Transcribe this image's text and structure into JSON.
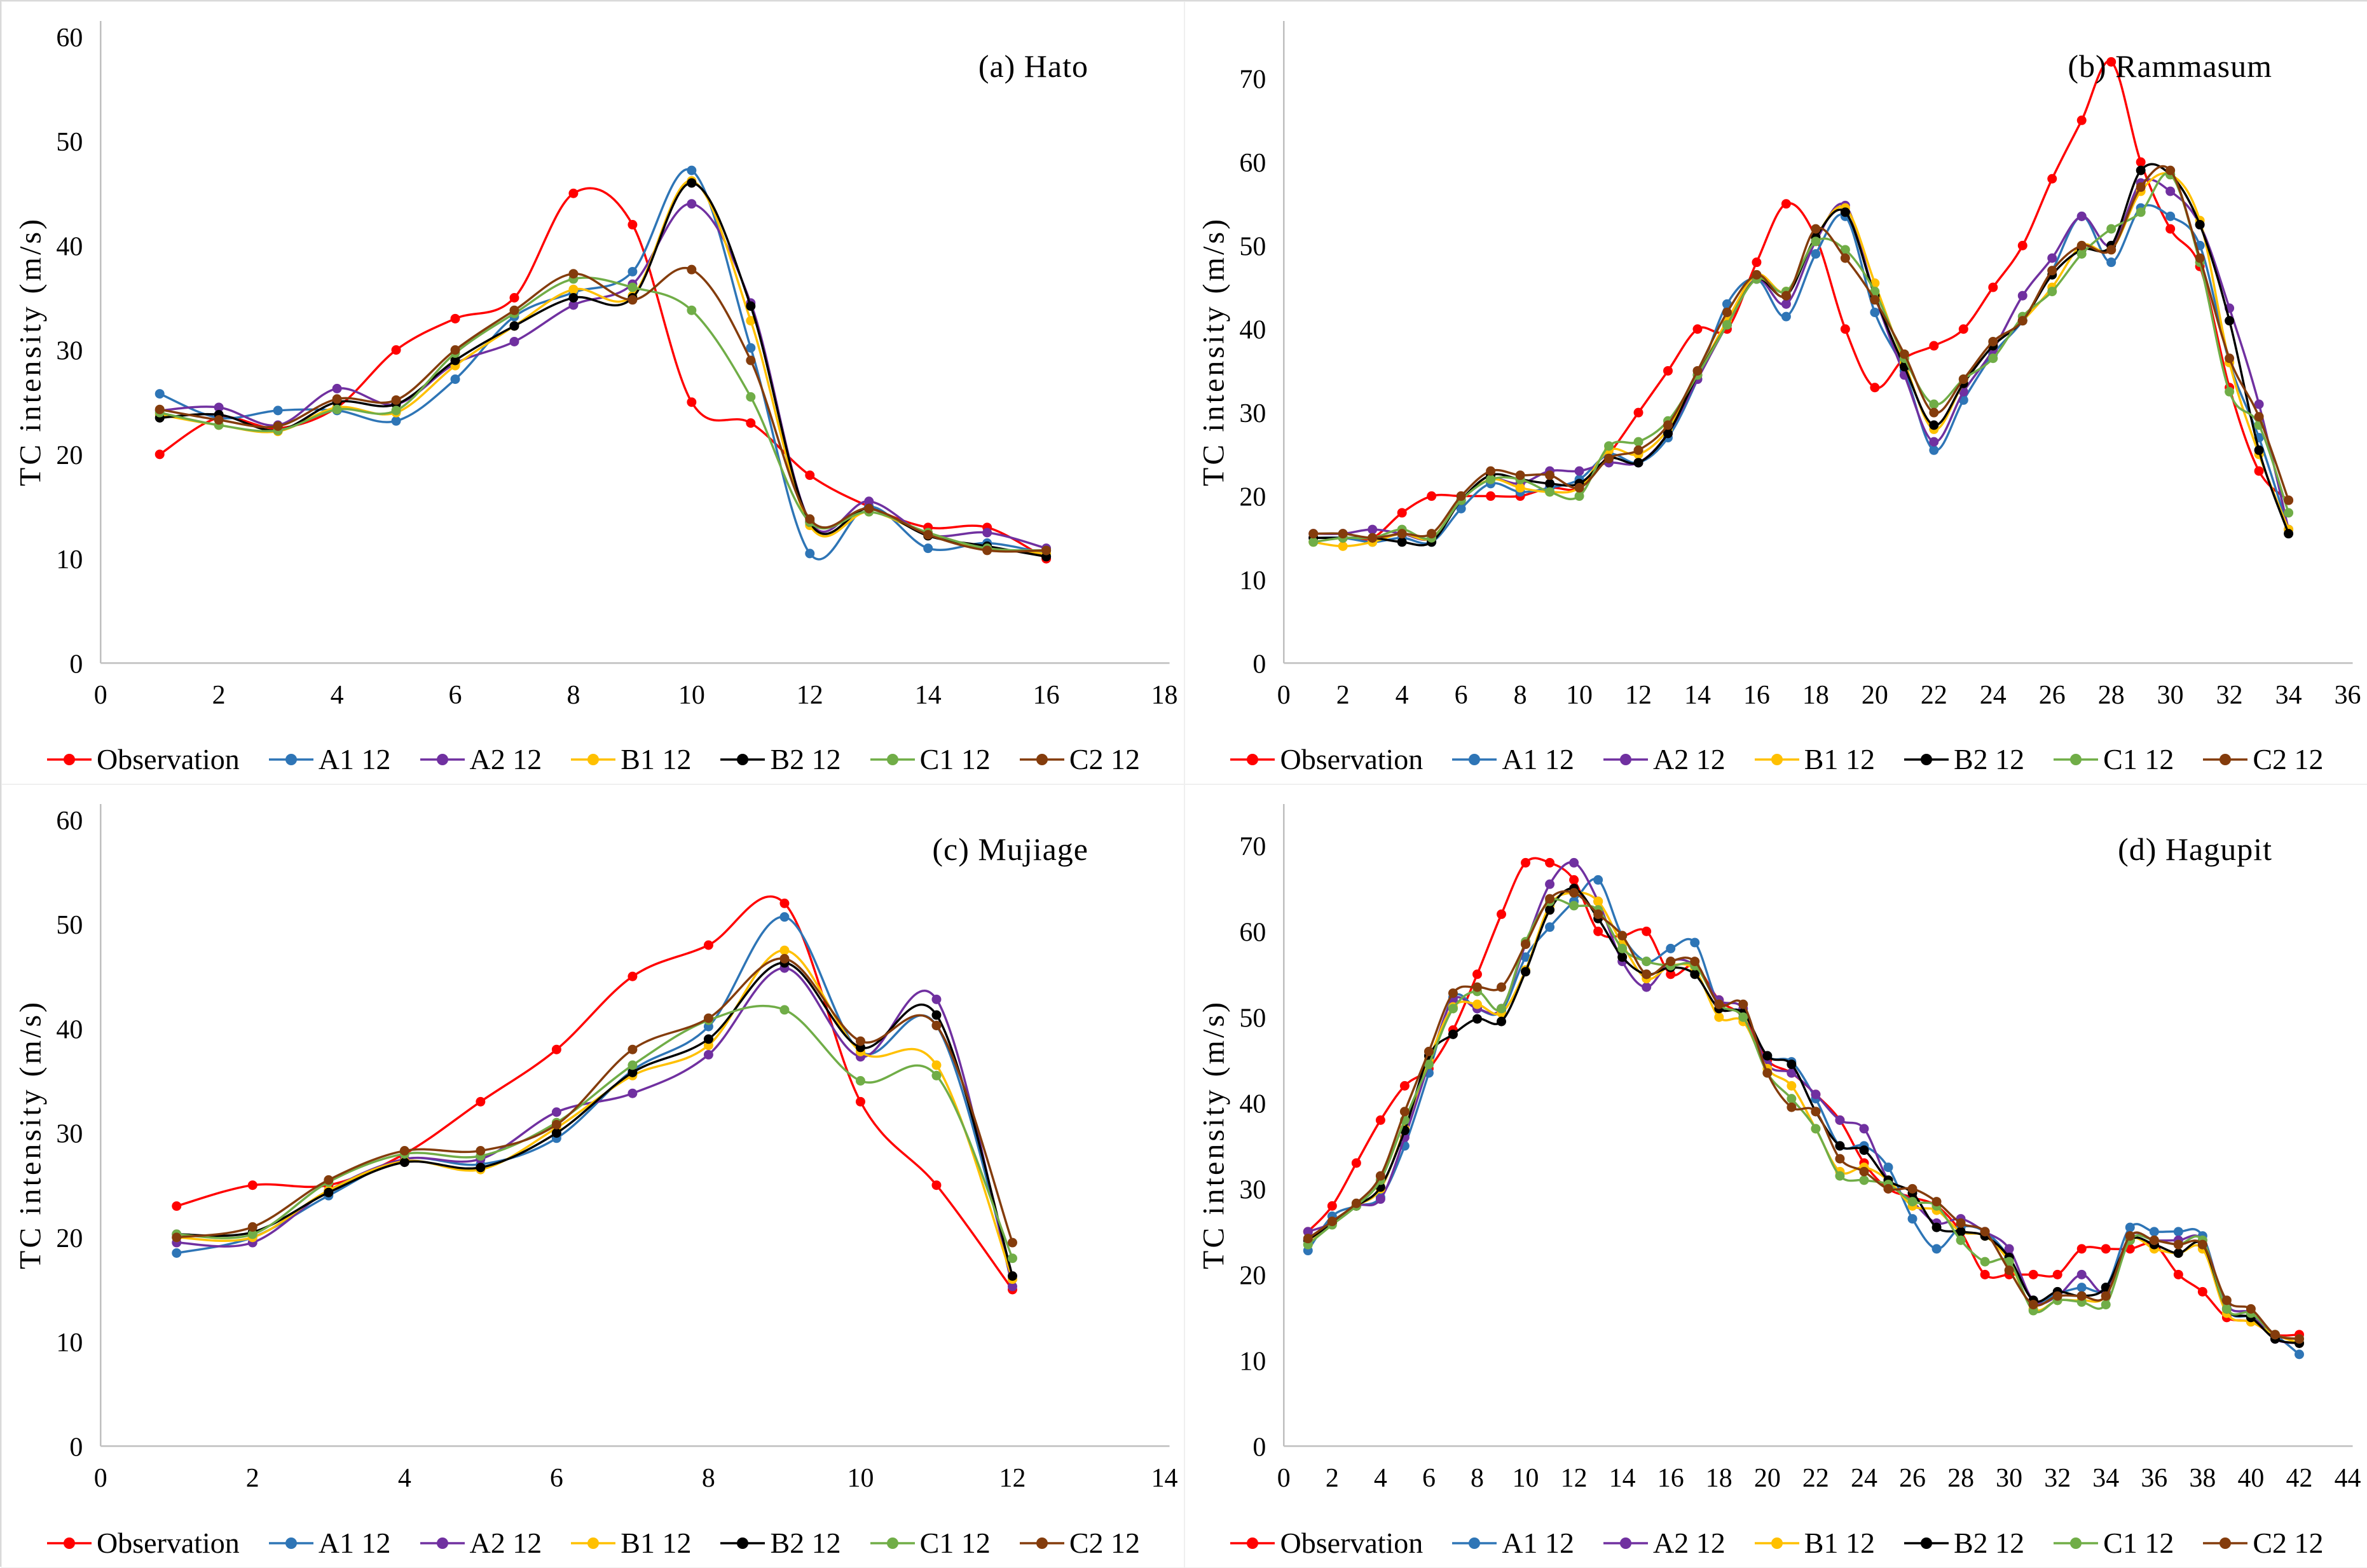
{
  "colors": {
    "Observation": "#FF0000",
    "A1 12": "#2E75B6",
    "A2 12": "#7030A0",
    "B1 12": "#FFC000",
    "B2 12": "#000000",
    "C1 12": "#70AD47",
    "C2 12": "#843C0C"
  },
  "legend": {
    "items": [
      "Observation",
      "A1 12",
      "A2 12",
      "B1 12",
      "B2 12",
      "C1 12",
      "C2 12"
    ]
  },
  "chart_data": [
    {
      "type": "line",
      "title": "(a) Hato",
      "ylabel": "TC intensity (m/s)",
      "xlim": [
        0,
        18
      ],
      "xtick_step": 2,
      "ylim": [
        0,
        60
      ],
      "ytick_max": 60,
      "ytick_step": 10,
      "x_start": 1,
      "series": [
        {
          "name": "Observation",
          "values": [
            20,
            23.5,
            22.5,
            24.5,
            30,
            33,
            35,
            45,
            42,
            25,
            23,
            18,
            15,
            13,
            13,
            10
          ]
        },
        {
          "name": "A1 12",
          "values": [
            25.8,
            23.5,
            24.2,
            24.2,
            23.2,
            27.2,
            33.2,
            35.5,
            37.5,
            47.2,
            30.2,
            10.5,
            15,
            11,
            11.5,
            10.5
          ]
        },
        {
          "name": "A2 12",
          "values": [
            24.2,
            24.5,
            22.8,
            26.3,
            24.8,
            28.7,
            30.8,
            34.3,
            36.3,
            44,
            34.5,
            13.6,
            15.5,
            12.3,
            12.5,
            11
          ]
        },
        {
          "name": "B1 12",
          "values": [
            23.8,
            22.8,
            22.2,
            24.5,
            24,
            28.5,
            32.3,
            35.8,
            35.2,
            46.2,
            32.8,
            13.2,
            14.5,
            12.3,
            11,
            10.5
          ]
        },
        {
          "name": "B2 12",
          "values": [
            23.5,
            23.8,
            22.3,
            25,
            24.8,
            29,
            32.3,
            35,
            35,
            46,
            34.2,
            13.5,
            14.8,
            12.2,
            11.2,
            10.2
          ]
        },
        {
          "name": "C1 12",
          "values": [
            24,
            22.8,
            22.3,
            24.3,
            24.2,
            29.7,
            33.5,
            36.8,
            36,
            33.8,
            25.5,
            13.5,
            14.5,
            12.5,
            11,
            10.8
          ]
        },
        {
          "name": "C2 12",
          "values": [
            24.3,
            23.3,
            22.7,
            25.3,
            25.2,
            30,
            33.8,
            37.3,
            34.8,
            37.7,
            29,
            13.8,
            14.8,
            12.3,
            10.8,
            10.8
          ]
        }
      ]
    },
    {
      "type": "line",
      "title": "(b) Rammasum",
      "ylabel": "TC intensity (m/s)",
      "xlim": [
        0,
        36
      ],
      "xtick_step": 2,
      "ylim": [
        0,
        75
      ],
      "ytick_max": 70,
      "ytick_step": 10,
      "x_start": 1,
      "series": [
        {
          "name": "Observation",
          "values": [
            15,
            15,
            15,
            18,
            20,
            20,
            20,
            20,
            21,
            21,
            25,
            30,
            35,
            40,
            40,
            48,
            55,
            51,
            40,
            33,
            36.5,
            38,
            40,
            45,
            50,
            58,
            65,
            72,
            60,
            52,
            47.5,
            33,
            23,
            19.5
          ]
        },
        {
          "name": "A1 12",
          "values": [
            15,
            15,
            14.5,
            15,
            14.5,
            18.5,
            21.5,
            20.5,
            21,
            22,
            25,
            24,
            27,
            34,
            43,
            46,
            41.5,
            49,
            53.5,
            42,
            35,
            25.5,
            31.5,
            37,
            41,
            47,
            53.5,
            48,
            54.5,
            53.5,
            50,
            36,
            27,
            16
          ]
        },
        {
          "name": "A2 12",
          "values": [
            15.5,
            15.5,
            16,
            15.5,
            15,
            19.5,
            22,
            21.5,
            23,
            23,
            24,
            24,
            27.5,
            34,
            40.5,
            46,
            43,
            50.5,
            54.8,
            44,
            34.5,
            26.5,
            32.5,
            37.5,
            44,
            48.5,
            53.5,
            50,
            57.5,
            56.5,
            52.5,
            42.5,
            31,
            16
          ]
        },
        {
          "name": "B1 12",
          "values": [
            14.5,
            14,
            14.5,
            15.5,
            15,
            19.5,
            22,
            21,
            20.5,
            21,
            25.5,
            25,
            28,
            34.5,
            41,
            46.5,
            44.5,
            51,
            54.5,
            45.5,
            36,
            28,
            33.5,
            38,
            41,
            45,
            50,
            49.5,
            56.5,
            58.5,
            53,
            36,
            25,
            16
          ]
        },
        {
          "name": "B2 12",
          "values": [
            15,
            15,
            15,
            14.5,
            14.5,
            19.5,
            22.5,
            22,
            21.5,
            21.5,
            24.5,
            24,
            27.5,
            34.5,
            40.5,
            46,
            44,
            51,
            54,
            44,
            35.5,
            28.5,
            33.5,
            38,
            41,
            46.5,
            49.5,
            50,
            59,
            58.5,
            52.5,
            41,
            25.5,
            15.5
          ]
        },
        {
          "name": "C1 12",
          "values": [
            14.5,
            15,
            15,
            16,
            15,
            19.5,
            22,
            22,
            20.5,
            20,
            26,
            26.5,
            29,
            34.5,
            40.5,
            46,
            44.5,
            50.5,
            49.5,
            44.5,
            36.5,
            31,
            34,
            36.5,
            41.5,
            44.5,
            49,
            52,
            54,
            58.5,
            48,
            32.5,
            28.5,
            18
          ]
        },
        {
          "name": "C2 12",
          "values": [
            15.5,
            15.5,
            15,
            15.5,
            15.5,
            20,
            23,
            22.5,
            22.5,
            21,
            24.5,
            25.5,
            28.5,
            35,
            42,
            46.5,
            44,
            52,
            48.5,
            43.5,
            37,
            30,
            34,
            38.5,
            41,
            47,
            50,
            49.5,
            57,
            59,
            48.5,
            36.5,
            29.5,
            19.5
          ]
        }
      ]
    },
    {
      "type": "line",
      "title": "(c) Mujiage",
      "ylabel": "TC intensity (m/s)",
      "xlim": [
        0,
        14
      ],
      "xtick_step": 2,
      "ylim": [
        0,
        60
      ],
      "ytick_max": 60,
      "ytick_step": 10,
      "x_start": 1,
      "series": [
        {
          "name": "Observation",
          "values": [
            23,
            25,
            25,
            28,
            33,
            38,
            45,
            48,
            52,
            33,
            25,
            15
          ]
        },
        {
          "name": "A1 12",
          "values": [
            18.5,
            20,
            24,
            27.5,
            27,
            29.5,
            36,
            40.2,
            50.7,
            37.8,
            40.3,
            16
          ]
        },
        {
          "name": "A2 12",
          "values": [
            19.5,
            19.5,
            24.5,
            27.5,
            27.5,
            32,
            33.8,
            37.5,
            45.8,
            37.3,
            42.8,
            15.3
          ]
        },
        {
          "name": "B1 12",
          "values": [
            20,
            20,
            24.5,
            27.3,
            26.5,
            30.5,
            35.5,
            38.4,
            47.5,
            37.8,
            36.5,
            16
          ]
        },
        {
          "name": "B2 12",
          "values": [
            20.3,
            20.5,
            24.3,
            27.2,
            26.7,
            30,
            35.8,
            39,
            46.3,
            38.2,
            41.3,
            16.3
          ]
        },
        {
          "name": "C1 12",
          "values": [
            20.3,
            20.3,
            25.3,
            28,
            27.8,
            31,
            36.5,
            40.8,
            41.8,
            35,
            35.5,
            18
          ]
        },
        {
          "name": "C2 12",
          "values": [
            20,
            21,
            25.5,
            28.3,
            28.3,
            30.8,
            38,
            41,
            46.7,
            38.8,
            40.3,
            19.5
          ]
        }
      ]
    },
    {
      "type": "line",
      "title": "(d) Hagupit",
      "ylabel": "TC intensity (m/s)",
      "xlim": [
        0,
        44
      ],
      "xtick_step": 2,
      "ylim": [
        0,
        73
      ],
      "ytick_max": 70,
      "ytick_step": 10,
      "x_start": 1,
      "series": [
        {
          "name": "Observation",
          "values": [
            25,
            28,
            33,
            38,
            42,
            44,
            48.5,
            55,
            62,
            68,
            68,
            66,
            60,
            59.5,
            60,
            55,
            56,
            52,
            50,
            45,
            43.5,
            41,
            38,
            33,
            30,
            29,
            28,
            25,
            20,
            20,
            20,
            20,
            23,
            23,
            23,
            23.5,
            20,
            18,
            15,
            14.5,
            13,
            13
          ]
        },
        {
          "name": "A1 12",
          "values": [
            22.8,
            26.8,
            28,
            29,
            35,
            43.5,
            52.3,
            51,
            50.7,
            57,
            60.5,
            63.5,
            66,
            59.5,
            56.5,
            58,
            58.7,
            51.5,
            50.5,
            45.5,
            44.8,
            40.5,
            35,
            35,
            32.5,
            26.5,
            23,
            25.5,
            25,
            22,
            17,
            17.8,
            18.5,
            18.5,
            25.5,
            25,
            25,
            24.5,
            16,
            15,
            13,
            10.7
          ]
        },
        {
          "name": "A2 12",
          "values": [
            25,
            26,
            28,
            28.8,
            36,
            44.5,
            52,
            51,
            51,
            58.5,
            65.5,
            68,
            63.5,
            56.5,
            53.5,
            56.5,
            56,
            52,
            51,
            44.5,
            43.5,
            41,
            38,
            37,
            31,
            28.5,
            26,
            26.5,
            25,
            23,
            17,
            17.5,
            20,
            18,
            24.5,
            24,
            24,
            24,
            16.5,
            15.5,
            12.5,
            12
          ]
        },
        {
          "name": "B1 12",
          "values": [
            23.5,
            26,
            28,
            30,
            37,
            45,
            51.2,
            51.5,
            50.5,
            55.5,
            63,
            64.5,
            63.5,
            58.5,
            54.5,
            56,
            55.5,
            50,
            49.5,
            44,
            42,
            37,
            32,
            32.5,
            31,
            28,
            27.5,
            25,
            24.5,
            21.5,
            16,
            17,
            17,
            17.5,
            24,
            23,
            22.5,
            23,
            15.5,
            14.5,
            13,
            12
          ]
        },
        {
          "name": "B2 12",
          "values": [
            24,
            26,
            28,
            30.2,
            36.8,
            45.5,
            48,
            49.8,
            49.5,
            55.3,
            62.5,
            65,
            61.5,
            57,
            55,
            55.8,
            55,
            51,
            50.5,
            45.5,
            44.5,
            39,
            35,
            34.5,
            31,
            29.5,
            25.5,
            25,
            24.5,
            22,
            17,
            18,
            17.5,
            18.5,
            24,
            23.5,
            22.5,
            23.5,
            16,
            15,
            12.5,
            12
          ]
        },
        {
          "name": "C1 12",
          "values": [
            23.5,
            25.8,
            28,
            31,
            38,
            44.5,
            51,
            53,
            51,
            58.8,
            63.5,
            63,
            62.5,
            58,
            56.5,
            56,
            56,
            51.5,
            50,
            43.5,
            40.5,
            37,
            31.5,
            31,
            30.5,
            28.5,
            28,
            24,
            21.5,
            21.5,
            15.8,
            17,
            16.8,
            16.5,
            24,
            24,
            23.5,
            24,
            16,
            15.5,
            13,
            12.5
          ]
        },
        {
          "name": "C2 12",
          "values": [
            24.2,
            26.2,
            28.3,
            31.5,
            39,
            46,
            52.8,
            53.5,
            53.5,
            58.5,
            63.8,
            64.5,
            62,
            59.5,
            55,
            56.5,
            56.5,
            51.5,
            51.5,
            43.5,
            39.5,
            39,
            33.5,
            32,
            30,
            30,
            28.5,
            26,
            25,
            20.5,
            16.5,
            17.5,
            17.5,
            17.5,
            24.5,
            24,
            23.5,
            23.5,
            17,
            16,
            13,
            12.5
          ]
        }
      ]
    }
  ]
}
